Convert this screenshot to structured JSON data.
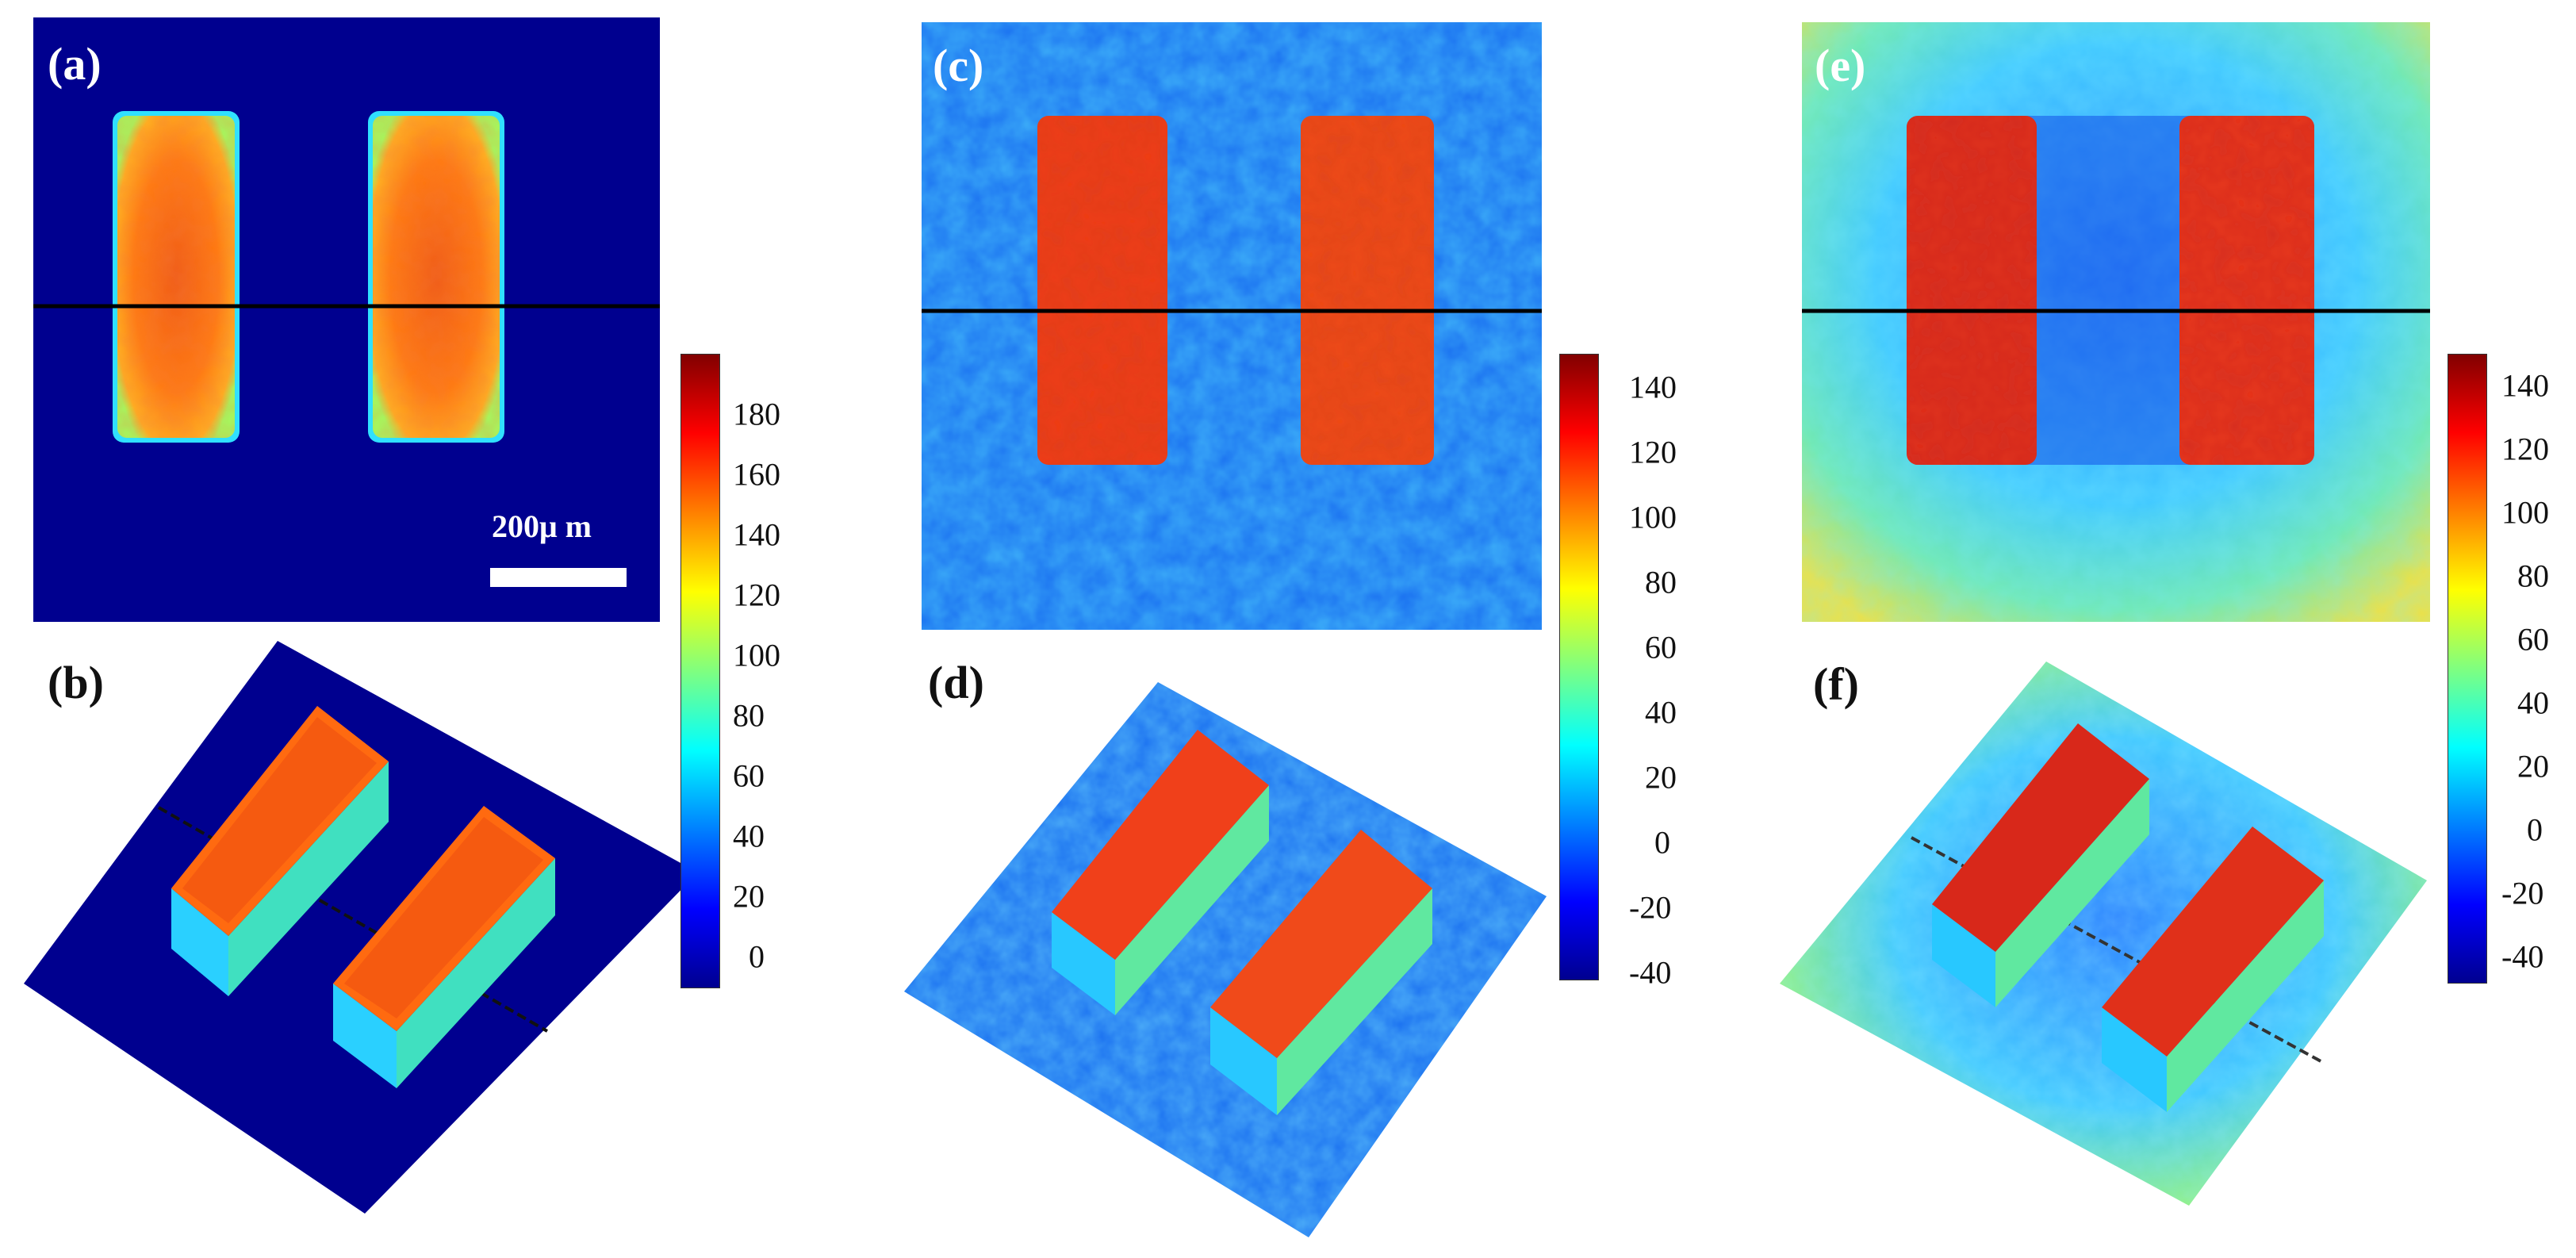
{
  "panels": [
    {
      "id": "a",
      "label": "(a)"
    },
    {
      "id": "b",
      "label": "(b)"
    },
    {
      "id": "c",
      "label": "(c)"
    },
    {
      "id": "d",
      "label": "(d)"
    },
    {
      "id": "e",
      "label": "(e)"
    },
    {
      "id": "f",
      "label": "(f)"
    }
  ],
  "scale_bar": {
    "label": "200μ m"
  },
  "colorbars": [
    {
      "ticks": [
        "180",
        "160",
        "140",
        "120",
        "100",
        "80",
        "60",
        "40",
        "20",
        "0"
      ],
      "range": [
        -10,
        200
      ]
    },
    {
      "ticks": [
        "140",
        "120",
        "100",
        "80",
        "60",
        "40",
        "20",
        "0",
        "-20",
        "-40"
      ],
      "range": [
        -40,
        150
      ]
    },
    {
      "ticks": [
        "140",
        "120",
        "100",
        "80",
        "60",
        "40",
        "20",
        "0",
        "-20",
        "-40"
      ],
      "range": [
        -40,
        160
      ]
    }
  ],
  "colors": {
    "jet_dark_blue": "#00008f",
    "jet_blue": "#1050ff",
    "jet_cyan": "#20d0ff",
    "jet_yellow": "#f0e020",
    "jet_orange": "#ff8a10",
    "jet_red": "#e02010",
    "jet_dark_red": "#800000",
    "profile_line": "#000000"
  }
}
